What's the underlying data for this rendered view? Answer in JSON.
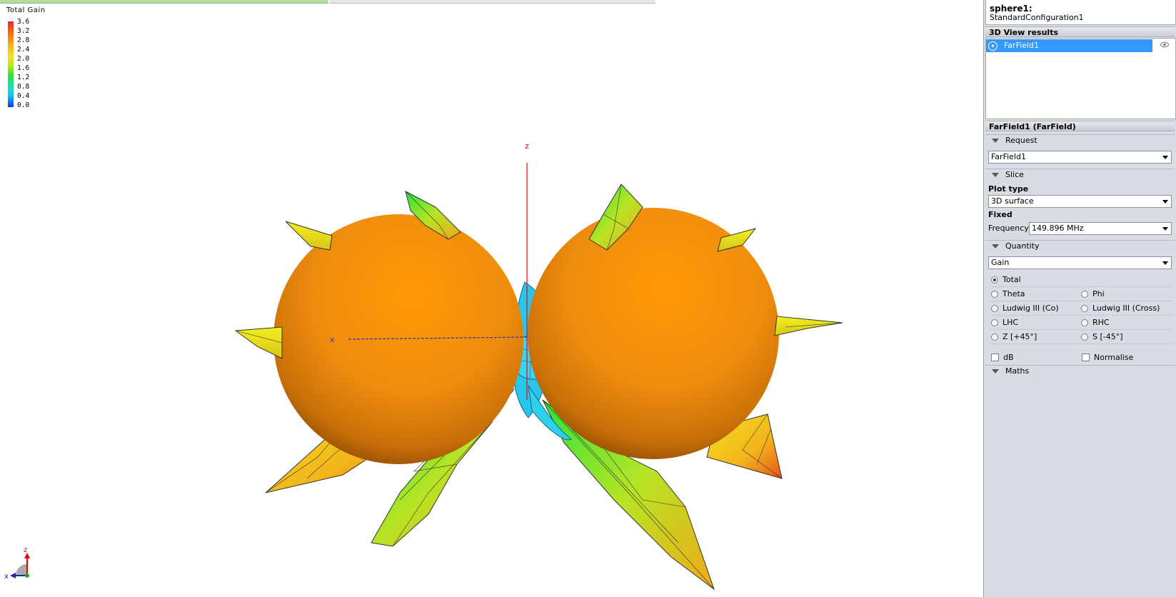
{
  "legend": {
    "title": "Total Gain",
    "ticks": [
      "3.6",
      "3.2",
      "2.8",
      "2.4",
      "2.0",
      "1.6",
      "1.2",
      "0.8",
      "0.4",
      "0.0"
    ]
  },
  "axes": {
    "z": "z",
    "x": "x",
    "triad_z": "z",
    "triad_x": "x"
  },
  "selection": {
    "object": "sphere1:",
    "config": "StandardConfiguration1"
  },
  "results_header": "3D View results",
  "results": [
    {
      "label": "FarField1"
    }
  ],
  "props_header": "FarField1 (FarField)",
  "request": {
    "section": "Request",
    "value": "FarField1"
  },
  "slice": {
    "section": "Slice"
  },
  "plot_type": {
    "label": "Plot type",
    "value": "3D surface"
  },
  "fixed": {
    "label": "Fixed",
    "frequency_label": "Frequency",
    "frequency_value": "149.896 MHz"
  },
  "quantity": {
    "section": "Quantity",
    "value": "Gain",
    "options": {
      "total": "Total",
      "theta": "Theta",
      "phi": "Phi",
      "ludwig_co": "Ludwig III (Co)",
      "ludwig_cross": "Ludwig III (Cross)",
      "lhc": "LHC",
      "rhc": "RHC",
      "z45": "Z [+45°]",
      "s45": "S [-45°]"
    },
    "selected": "Total",
    "db": "dB",
    "normalise": "Normalise"
  },
  "maths": {
    "section": "Maths"
  },
  "colors": {
    "sphere": "#f28c0a",
    "selection": "#3399ff",
    "axis_z": "#ff0000",
    "axis_x": "#3333aa"
  }
}
